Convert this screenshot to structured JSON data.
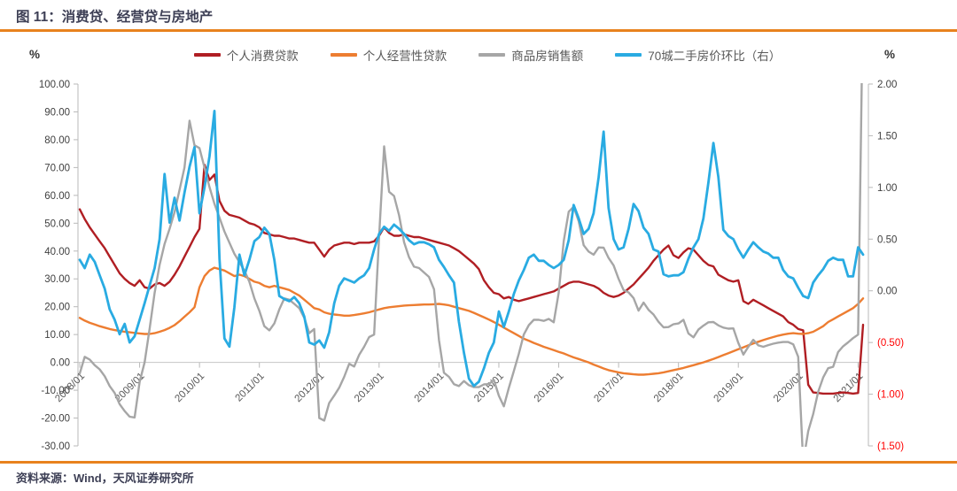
{
  "header": {
    "title": "图 11：消费贷、经营贷与房地产",
    "accent_rule_color": "#e8821e"
  },
  "footer": {
    "source": "资料来源：Wind，天风证券研究所"
  },
  "chart_data": {
    "type": "line",
    "title": "消费贷、经营贷与房地产",
    "left_axis_unit": "%",
    "right_axis_unit": "%",
    "ylim_left": [
      -30,
      100
    ],
    "ylim_right": [
      -1.5,
      2.0
    ],
    "left_tick_labels": [
      "100.00",
      "90.00",
      "80.00",
      "70.00",
      "60.00",
      "50.00",
      "40.00",
      "30.00",
      "20.00",
      "10.00",
      "0.00",
      "-10.00",
      "-20.00",
      "-30.00"
    ],
    "right_tick_labels": [
      "2.00",
      "1.50",
      "1.00",
      "0.50",
      "0.00",
      "(0.50)",
      "(1.00)",
      "(1.50)"
    ],
    "right_tick_negative_color": "#ff0000",
    "tick_label_color": "#404040",
    "x_tick_label_color": "#595959",
    "x_tick_labels": [
      "2008/01",
      "2009/01",
      "2010/01",
      "2011/01",
      "2012/01",
      "2013/01",
      "2014/01",
      "2015/01",
      "2016/01",
      "2017/01",
      "2018/01",
      "2019/01",
      "2020/01",
      "2021/01"
    ],
    "x_start": "2008/01",
    "x_end": "2021/02",
    "months_per_tick": 12,
    "grid": "zero-line-only",
    "legend_position": "top",
    "series": [
      {
        "name": "个人消费贷款",
        "key": "personal-consumer-loan",
        "axis": "left",
        "color": "#b01e23",
        "values": [
          55,
          51.5,
          48.5,
          46,
          43.5,
          41,
          38,
          35,
          32,
          30,
          28.5,
          27.5,
          29.5,
          27,
          26.5,
          28,
          28.5,
          27.5,
          29,
          31.5,
          34.5,
          38,
          41.5,
          45,
          48,
          71,
          65.5,
          67.5,
          58,
          54.5,
          53,
          52.5,
          52,
          51,
          50,
          49.5,
          48.5,
          46.5,
          46,
          45.5,
          45.5,
          45,
          44.5,
          44.5,
          44,
          43.5,
          43,
          43,
          40.5,
          38,
          40.5,
          42,
          42.5,
          43,
          43,
          42.5,
          43,
          43,
          43,
          43.5,
          45.5,
          48.5,
          46.5,
          45.5,
          45.5,
          46,
          45.5,
          45,
          45,
          44.5,
          44,
          43.5,
          43,
          42.5,
          42,
          41,
          40,
          38.5,
          37,
          35.5,
          33.5,
          29.5,
          27,
          25,
          24.5,
          23,
          23.5,
          22.5,
          22,
          22.5,
          23,
          23.5,
          24,
          24.5,
          25,
          25.5,
          26.5,
          27.5,
          28.5,
          29,
          29,
          28.5,
          28,
          27.5,
          26.5,
          25,
          24,
          23.5,
          24,
          25,
          26.5,
          28,
          30,
          32,
          34,
          36.5,
          38.5,
          40.5,
          42,
          38.5,
          37.5,
          39.5,
          41,
          40.5,
          38.5,
          36.5,
          35,
          34.5,
          31.5,
          30.5,
          29.5,
          29,
          29.5,
          22,
          21,
          22.5,
          21.5,
          20.5,
          19.5,
          18.5,
          17.5,
          16.5,
          14.5,
          13.5,
          12,
          11.5,
          -8,
          -10.8,
          -11,
          -11.2,
          -11.2,
          -11.2,
          -11,
          -10.8,
          -11,
          -11.2,
          -11,
          13.5
        ]
      },
      {
        "name": "个人经营性贷款",
        "key": "personal-business-loan",
        "axis": "left",
        "color": "#ed7d31",
        "values": [
          16,
          15,
          14.2,
          13.6,
          13,
          12.5,
          12,
          11.6,
          11.3,
          11,
          10.8,
          10.6,
          10.4,
          10.2,
          10.2,
          10.5,
          11,
          11.6,
          12.4,
          13.4,
          14.8,
          16.4,
          18,
          19.8,
          27,
          31,
          33,
          34,
          33.5,
          33,
          32,
          31,
          31.5,
          31,
          30,
          29,
          28.5,
          27.5,
          27,
          27.5,
          27,
          26.5,
          26,
          25,
          24,
          22.5,
          21,
          19.5,
          19,
          18,
          17.5,
          17.2,
          17,
          16.8,
          16.8,
          17,
          17.3,
          17.6,
          18,
          18.5,
          19,
          19.5,
          19.8,
          20,
          20.2,
          20.4,
          20.5,
          20.6,
          20.7,
          20.8,
          20.8,
          20.9,
          21,
          20.8,
          20.5,
          20,
          19.5,
          19,
          18.5,
          17.8,
          17,
          16.2,
          15.4,
          14.5,
          13.5,
          12.5,
          11.5,
          10.5,
          9.5,
          8.5,
          7.8,
          7,
          6.3,
          5.6,
          5,
          4.4,
          3.8,
          3.2,
          2.5,
          1.8,
          1.2,
          0.6,
          0,
          -0.8,
          -1.5,
          -2.2,
          -2.8,
          -3.2,
          -3.6,
          -3.9,
          -4.1,
          -4.3,
          -4.4,
          -4.4,
          -4.3,
          -4.1,
          -3.9,
          -3.6,
          -3.2,
          -2.8,
          -2.4,
          -2,
          -1.5,
          -1,
          -0.5,
          0,
          0.6,
          1.2,
          1.9,
          2.6,
          3.3,
          4,
          4.7,
          5.4,
          6.1,
          6.8,
          7.4,
          8,
          8.6,
          9.1,
          9.6,
          10,
          10.3,
          10.5,
          10.3,
          10.2,
          10.5,
          11,
          12,
          13,
          14.5,
          15.5,
          16.5,
          17.5,
          18.5,
          19.5,
          21,
          23
        ]
      },
      {
        "name": "商品房销售额",
        "key": "commodity-housing-sales",
        "axis": "left",
        "color": "#a6a6a6",
        "values": [
          -4,
          2,
          1,
          -1,
          -2.5,
          -5,
          -8.5,
          -11,
          -15,
          -17.5,
          -19.5,
          -19.8,
          -7,
          0,
          12,
          25,
          35,
          42.5,
          48,
          54,
          62,
          70,
          86.8,
          78,
          77,
          70,
          63,
          57,
          52,
          47,
          43,
          39,
          36,
          33,
          29,
          23,
          18.5,
          13,
          11.5,
          14,
          19,
          23,
          22.5,
          21,
          19.5,
          16,
          10.5,
          12,
          -20,
          -20.9,
          -14.6,
          -11.9,
          -9.1,
          -5.2,
          -0.5,
          -1.5,
          2.7,
          5.6,
          9.1,
          10,
          45,
          77.6,
          61.3,
          59.8,
          52.8,
          43.2,
          37.8,
          34.4,
          33.9,
          32.3,
          30.7,
          26.3,
          8,
          -3.7,
          -5.2,
          -7.8,
          -8.5,
          -6.7,
          -8.2,
          -8.9,
          -8.9,
          -7.9,
          -7.8,
          -6.3,
          -12,
          -15.8,
          -9.2,
          -3.1,
          3.1,
          10,
          13.4,
          15.3,
          15.3,
          14.9,
          15.6,
          14.4,
          25,
          43.6,
          54.1,
          55.9,
          50.7,
          42.1,
          39.8,
          38.7,
          41.3,
          41.2,
          37.5,
          34.8,
          30,
          26,
          25.1,
          23.1,
          18.6,
          21.5,
          18.9,
          17.2,
          14.6,
          12.6,
          12.7,
          13.7,
          14,
          15.3,
          10.4,
          9,
          11.8,
          13.2,
          14.4,
          14.5,
          13.3,
          12.5,
          12.1,
          12.2,
          7,
          2.8,
          5.6,
          8.1,
          6.1,
          5.6,
          6.2,
          6.7,
          7.1,
          7.3,
          7.3,
          6.5,
          2,
          -35.9,
          -24.7,
          -18.6,
          -10.6,
          -5.4,
          -2.1,
          -1.6,
          3.7,
          5.8,
          7.2,
          8.7,
          10,
          133.9
        ]
      },
      {
        "name": "70城二手房价环比（右）",
        "key": "70-city-second-hand-price-mom",
        "axis": "right",
        "color": "#29abe2",
        "values": [
          0.3,
          0.22,
          0.35,
          0.28,
          0.15,
          0.02,
          -0.18,
          -0.28,
          -0.42,
          -0.32,
          -0.5,
          -0.44,
          -0.28,
          -0.12,
          0.05,
          0.22,
          0.5,
          1.13,
          0.66,
          0.9,
          0.68,
          0.95,
          1.2,
          1.39,
          0.75,
          1,
          1.3,
          1.74,
          0.31,
          -0.46,
          -0.54,
          -0.16,
          0.35,
          0.15,
          0.3,
          0.48,
          0.52,
          0.61,
          0.55,
          0.3,
          -0.05,
          -0.08,
          -0.1,
          -0.06,
          -0.12,
          -0.25,
          -0.5,
          -0.52,
          -0.48,
          -0.55,
          -0.4,
          -0.12,
          0.05,
          0.12,
          0.1,
          0.08,
          0.12,
          0.15,
          0.22,
          0.4,
          0.55,
          0.62,
          0.58,
          0.64,
          0.6,
          0.55,
          0.49,
          0.45,
          0.47,
          0.47,
          0.45,
          0.42,
          0.3,
          0.23,
          0.15,
          0.08,
          -0.3,
          -0.6,
          -0.85,
          -0.92,
          -0.88,
          -0.75,
          -0.6,
          -0.5,
          -0.2,
          -0.35,
          -0.2,
          -0.03,
          0.1,
          0.2,
          0.32,
          0.35,
          0.29,
          0.29,
          0.25,
          0.22,
          0.25,
          0.3,
          0.49,
          0.83,
          0.7,
          0.55,
          0.6,
          0.75,
          1.1,
          1.54,
          0.8,
          0.5,
          0.4,
          0.42,
          0.6,
          0.84,
          0.77,
          0.61,
          0.55,
          0.4,
          0.38,
          0.16,
          0.14,
          0.15,
          0.15,
          0.18,
          0.31,
          0.42,
          0.5,
          0.7,
          1.05,
          1.43,
          1.1,
          0.59,
          0.53,
          0.5,
          0.4,
          0.32,
          0.4,
          0.47,
          0.42,
          0.38,
          0.36,
          0.32,
          0.32,
          0.2,
          0.14,
          0.12,
          0.03,
          -0.05,
          -0.07,
          0.08,
          0.15,
          0.21,
          0.29,
          0.32,
          0.3,
          0.3,
          0.14,
          0.14,
          0.42,
          0.35
        ]
      }
    ]
  }
}
